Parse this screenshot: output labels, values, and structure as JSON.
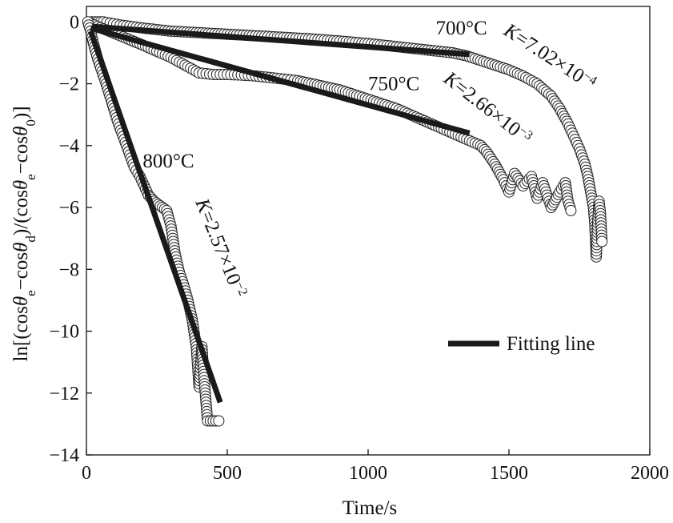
{
  "chart_data": {
    "type": "scatter",
    "xlabel": "Time/s",
    "ylabel_parts": [
      "ln[(cos",
      "θ",
      "e",
      "−cos",
      "θ",
      "d",
      ")/(cos",
      "θ",
      "e",
      "−cos",
      "θ",
      "0",
      ")]"
    ],
    "xlim": [
      0,
      2000
    ],
    "ylim": [
      -14,
      0.5
    ],
    "xticks": [
      0,
      500,
      1000,
      1500,
      2000
    ],
    "yticks": [
      0,
      -2,
      -4,
      -6,
      -8,
      -10,
      -12,
      -14
    ],
    "legend": {
      "label": "Fitting line",
      "position": "lower-right"
    },
    "series": [
      {
        "name": "700°C",
        "k_label": {
          "text": "K=7.02×10",
          "exp": "−4"
        },
        "fit": {
          "x": [
            20,
            1360
          ],
          "y": [
            -0.15,
            -1.05
          ]
        },
        "points": {
          "x": [
            20,
            60,
            120,
            200,
            300,
            400,
            500,
            600,
            700,
            800,
            900,
            1000,
            1100,
            1200,
            1300,
            1350,
            1400,
            1450,
            1500,
            1550,
            1600,
            1650,
            1680,
            1710,
            1730,
            1750,
            1770,
            1780,
            1790,
            1800,
            1805,
            1810,
            1815,
            1820,
            1825,
            1830
          ],
          "y": [
            0,
            0,
            -0.1,
            -0.2,
            -0.3,
            -0.35,
            -0.4,
            -0.45,
            -0.5,
            -0.55,
            -0.62,
            -0.7,
            -0.8,
            -0.9,
            -1.0,
            -1.1,
            -1.25,
            -1.4,
            -1.55,
            -1.75,
            -2.0,
            -2.4,
            -2.8,
            -3.3,
            -3.7,
            -4.1,
            -4.6,
            -5.0,
            -5.5,
            -6.0,
            -6.6,
            -7.6,
            -6.5,
            -5.8,
            -6.2,
            -7.1
          ]
        }
      },
      {
        "name": "750°C",
        "k_label": {
          "text": "K=2.66×10",
          "exp": "−3"
        },
        "fit": {
          "x": [
            15,
            1360
          ],
          "y": [
            -0.2,
            -3.6
          ]
        },
        "points": {
          "x": [
            15,
            40,
            80,
            120,
            160,
            200,
            250,
            300,
            350,
            400,
            450,
            500,
            550,
            600,
            650,
            700,
            750,
            800,
            850,
            900,
            950,
            1000,
            1050,
            1100,
            1150,
            1200,
            1250,
            1300,
            1350,
            1400,
            1420,
            1450,
            1480,
            1500,
            1520,
            1550,
            1580,
            1600,
            1620,
            1650,
            1680,
            1700,
            1710,
            1720
          ],
          "y": [
            -0.05,
            -0.15,
            -0.3,
            -0.45,
            -0.6,
            -0.75,
            -0.95,
            -1.15,
            -1.4,
            -1.65,
            -1.7,
            -1.7,
            -1.72,
            -1.75,
            -1.8,
            -1.85,
            -1.9,
            -2.0,
            -2.1,
            -2.2,
            -2.35,
            -2.5,
            -2.65,
            -2.8,
            -3.0,
            -3.2,
            -3.4,
            -3.6,
            -3.8,
            -4.0,
            -4.2,
            -4.6,
            -5.1,
            -5.5,
            -4.9,
            -5.3,
            -5.0,
            -5.7,
            -5.2,
            -6.0,
            -5.5,
            -5.2,
            -5.8,
            -6.1
          ]
        }
      },
      {
        "name": "800°C",
        "k_label": {
          "text": "K=2.57×10",
          "exp": "−2"
        },
        "fit": {
          "x": [
            15,
            475
          ],
          "y": [
            -0.3,
            -12.3
          ]
        },
        "points": {
          "x": [
            5,
            15,
            25,
            40,
            55,
            70,
            90,
            110,
            130,
            150,
            170,
            190,
            205,
            220,
            240,
            255,
            270,
            285,
            300,
            315,
            330,
            345,
            360,
            375,
            390,
            400,
            410,
            420,
            430,
            440,
            450,
            460,
            470
          ],
          "y": [
            0,
            -0.3,
            -0.7,
            -1.2,
            -1.6,
            -2.0,
            -2.6,
            -3.2,
            -3.7,
            -4.2,
            -4.7,
            -5.0,
            -5.3,
            -5.6,
            -5.8,
            -5.9,
            -6.0,
            -6.1,
            -6.6,
            -7.5,
            -8.1,
            -8.5,
            -9.0,
            -9.6,
            -10.5,
            -11.8,
            -10.5,
            -11.8,
            -12.9,
            -12.9,
            -12.9,
            -12.9,
            -12.9
          ]
        }
      }
    ],
    "annotations": [
      {
        "text": "700°C",
        "x": 1240,
        "y": -0.4
      },
      {
        "text": "750°C",
        "x": 1000,
        "y": -2.2
      },
      {
        "text": "800°C",
        "x": 200,
        "y": -4.7
      }
    ]
  }
}
